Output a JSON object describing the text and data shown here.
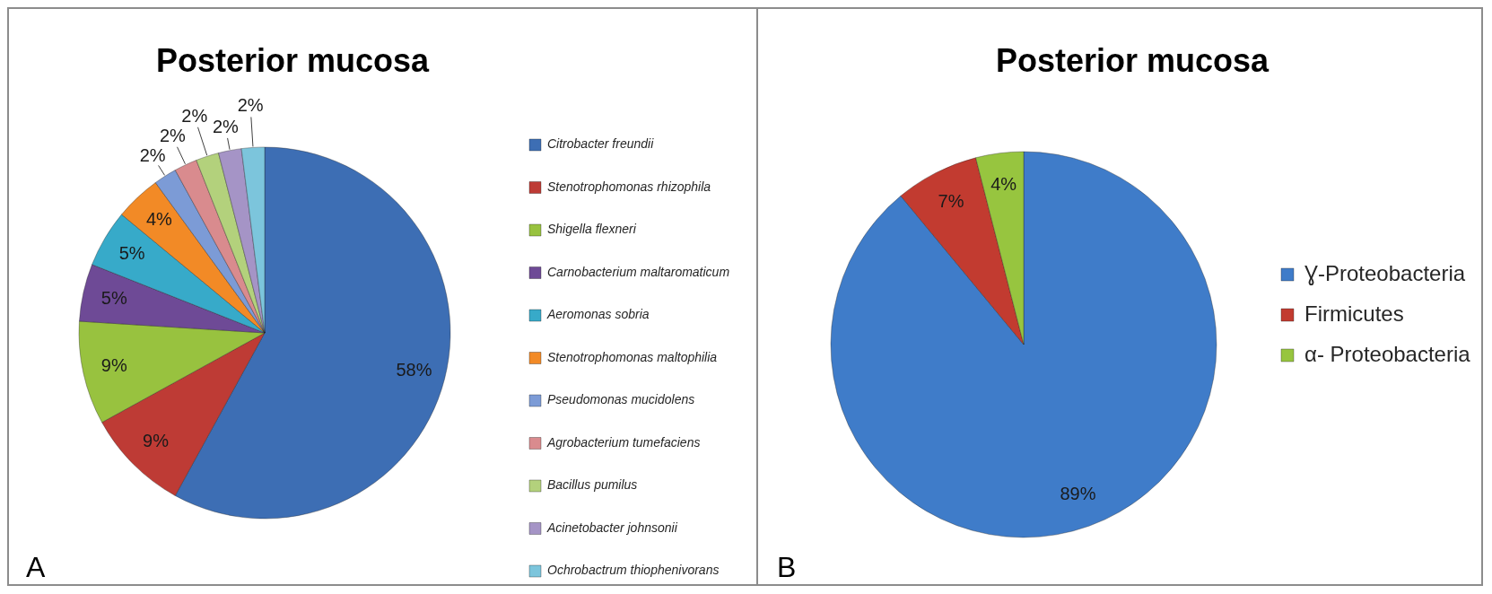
{
  "chart_data": [
    {
      "type": "pie",
      "title": "Posterior mucosa",
      "categories": [
        "Citrobacter freundii",
        "Stenotrophomonas rhizophila",
        "Shigella flexneri",
        "Carnobacterium maltaromaticum",
        "Aeromonas sobria",
        "Stenotrophomonas maltophilia",
        "Pseudomonas mucidolens",
        "Agrobacterium tumefaciens",
        "Bacillus pumilus",
        "Acinetobacter johnsonii",
        "Ochrobactrum thiophenivorans"
      ],
      "values": [
        58,
        9,
        9,
        5,
        5,
        4,
        2,
        2,
        2,
        2,
        2
      ],
      "colors": [
        "#3d6eb4",
        "#be3b35",
        "#98c23f",
        "#6e4a96",
        "#37aac9",
        "#f28a26",
        "#7c9bd6",
        "#d98b8e",
        "#b3d17c",
        "#a594c6",
        "#7cc5dc"
      ],
      "value_labels": [
        "58%",
        "9%",
        "9%",
        "5%",
        "5%",
        "4%",
        "2%",
        "2%",
        "2%",
        "2%",
        "2%"
      ],
      "legend": "right",
      "annotations": [
        "A"
      ]
    },
    {
      "type": "pie",
      "title": "Posterior mucosa",
      "categories": [
        "Ɣ-Proteobacteria",
        "Firmicutes",
        "α- Proteobacteria"
      ],
      "values": [
        89,
        7,
        4
      ],
      "colors": [
        "#3f7cc9",
        "#c23b30",
        "#97c53f"
      ],
      "value_labels": [
        "89%",
        "7%",
        "4%"
      ],
      "legend": "right",
      "annotations": [
        "B"
      ]
    }
  ]
}
